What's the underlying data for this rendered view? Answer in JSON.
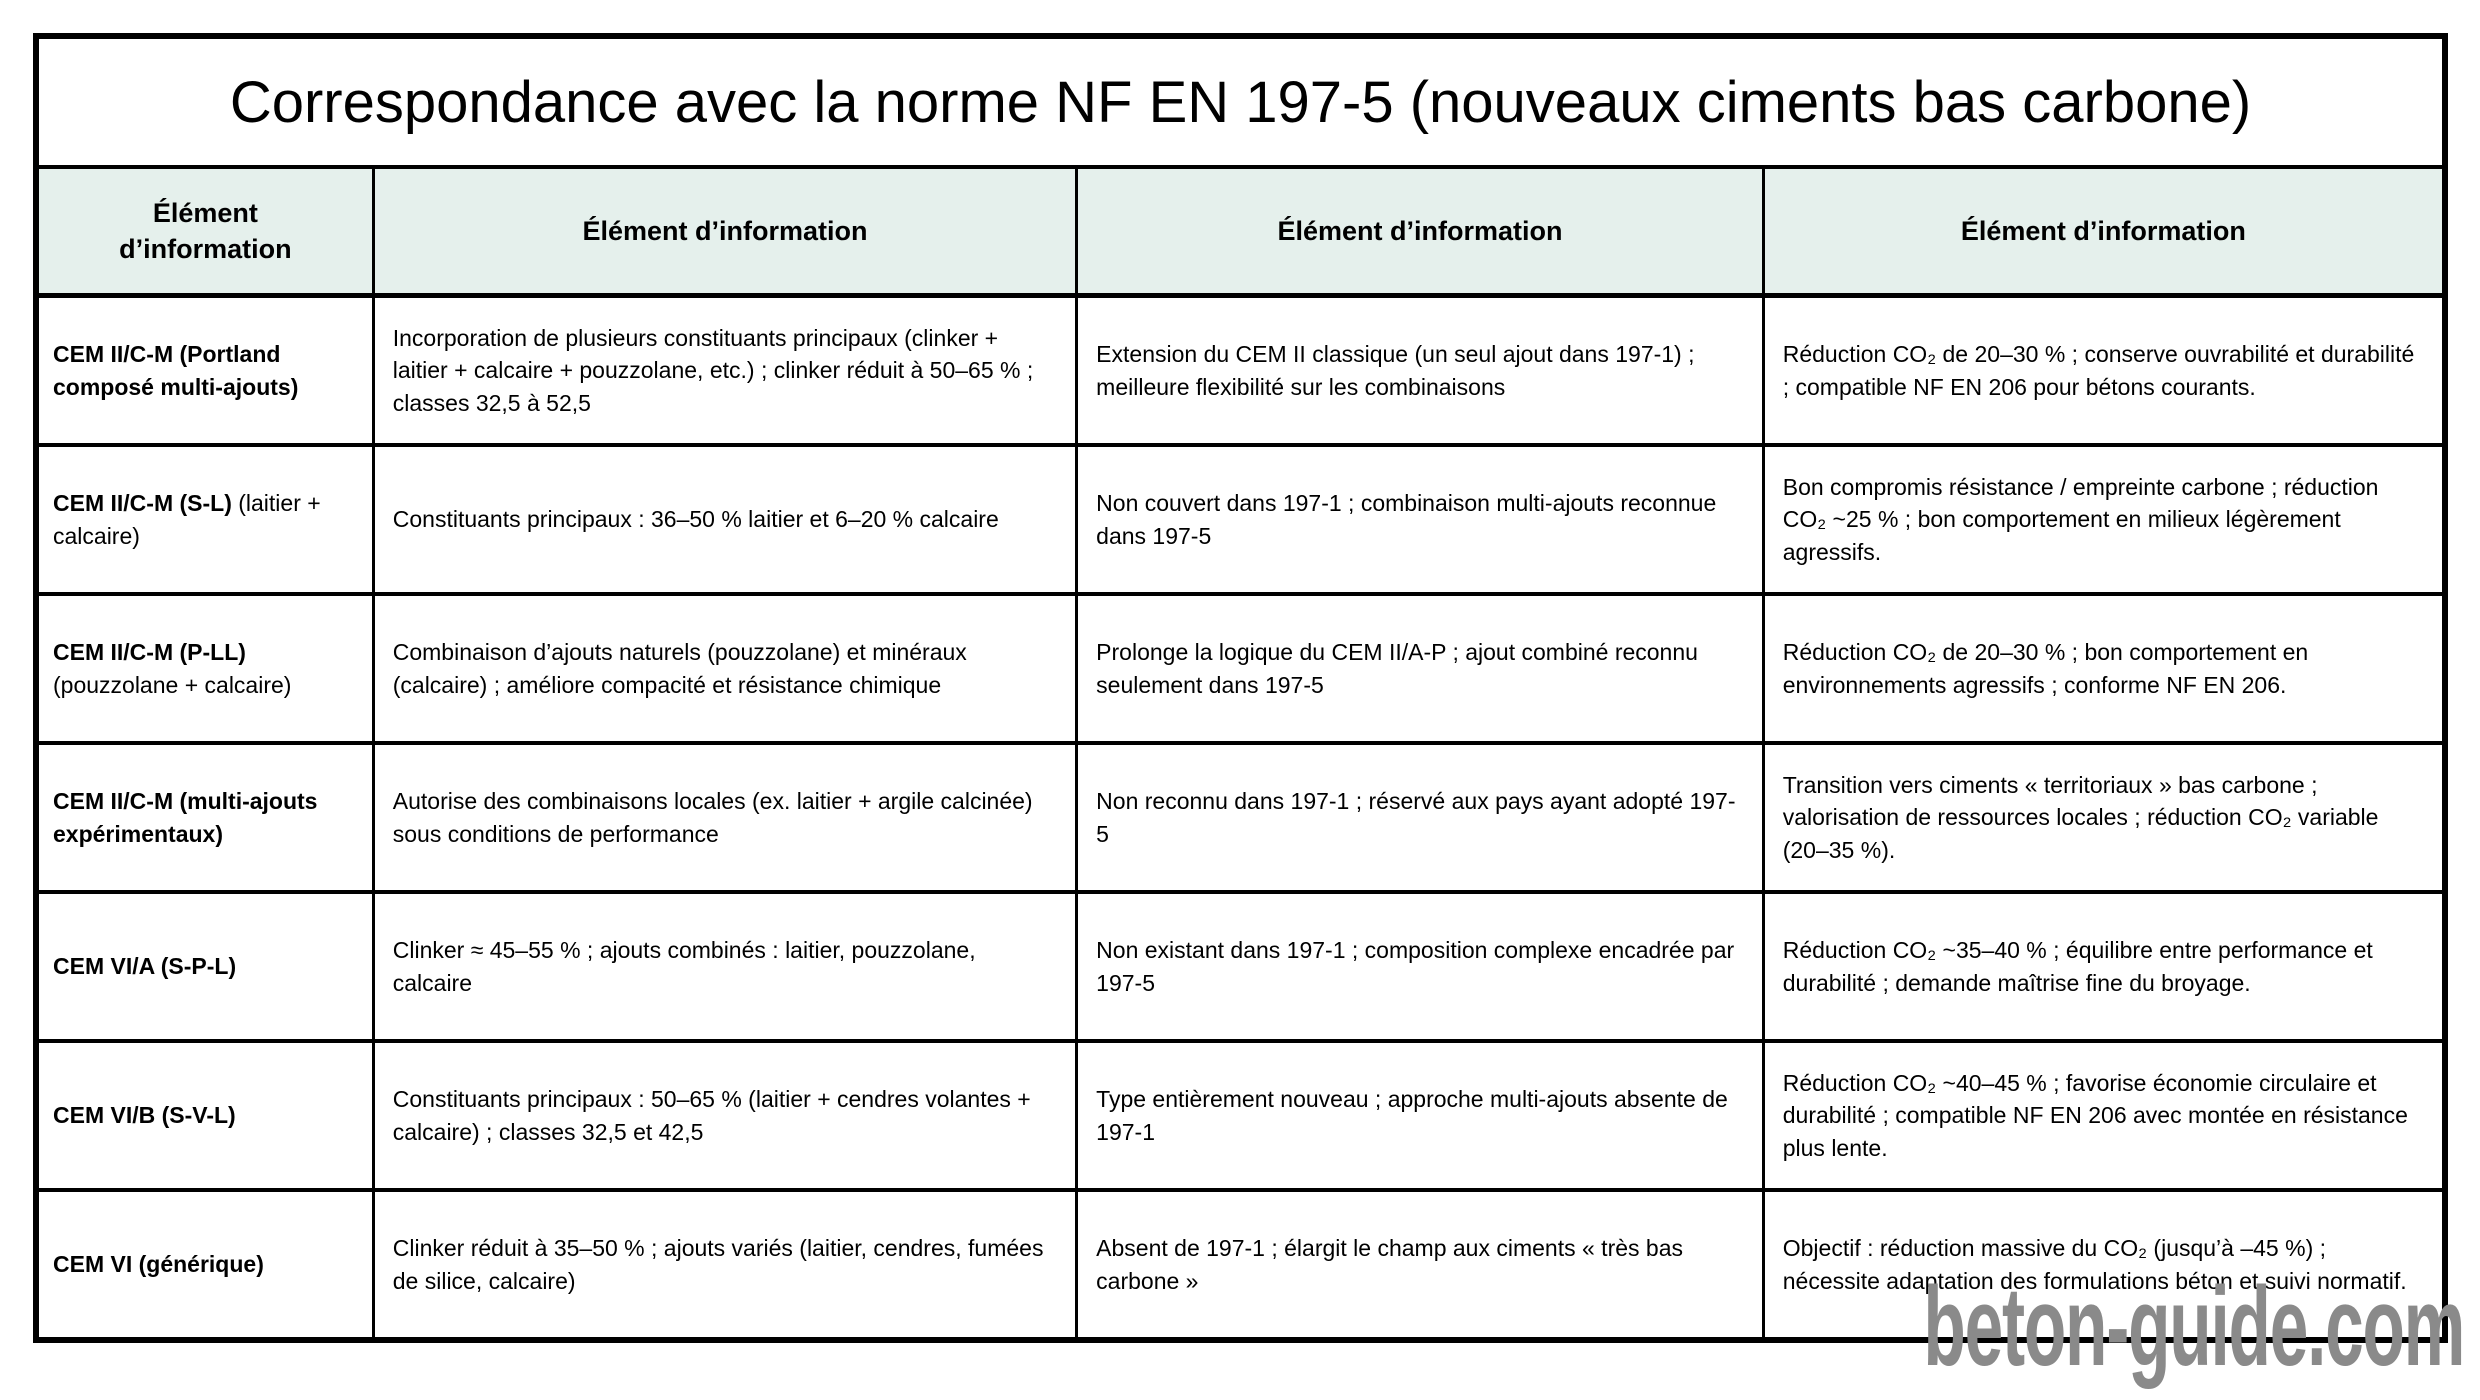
{
  "title": "Correspondance avec la norme NF EN 197-5 (nouveaux ciments bas carbone)",
  "watermark": "beton-guide.com",
  "colors": {
    "header_bg": "#e5f0ec",
    "border": "#000000",
    "watermark": "#8a8a8a",
    "text": "#000000",
    "background": "#ffffff"
  },
  "table": {
    "headers": [
      "Élément d’information",
      "Élément d’information",
      "Élément d’information",
      "Élément d’information"
    ],
    "rows": [
      {
        "name": "CEM II/C-M (Portland composé multi-ajouts)",
        "name_suffix": "",
        "composition": "Incorporation de plusieurs constituants principaux (clinker + laitier + calcaire + pouzzolane, etc.) ; clinker réduit à 50–65 % ; classes 32,5 à 52,5",
        "norme": "Extension du CEM II classique (un seul ajout dans 197-1) ; meilleure flexibilité sur les combinaisons",
        "impact": "Réduction CO₂ de 20–30 % ; conserve ouvrabilité et durabilité ; compatible NF EN 206 pour bétons courants."
      },
      {
        "name": "CEM II/C-M (S-L)",
        "name_suffix": " (laitier + calcaire)",
        "composition": "Constituants principaux : 36–50 % laitier et 6–20 % calcaire",
        "norme": "Non couvert dans 197-1 ; combinaison multi-ajouts reconnue dans 197-5",
        "impact": "Bon compromis résistance / empreinte carbone ; réduction CO₂ ~25 % ; bon comportement en milieux légèrement agressifs."
      },
      {
        "name": "CEM II/C-M (P-LL)",
        "name_suffix": " (pouzzolane + calcaire)",
        "composition": "Combinaison d’ajouts naturels (pouzzolane) et minéraux (calcaire) ; améliore compacité et résistance chimique",
        "norme": "Prolonge la logique du CEM II/A-P ; ajout combiné reconnu seulement dans 197-5",
        "impact": "Réduction CO₂ de 20–30 % ; bon comportement en environnements agressifs ; conforme NF EN 206."
      },
      {
        "name": "CEM II/C-M (multi-ajouts expérimentaux)",
        "name_suffix": "",
        "composition": "Autorise des combinaisons locales (ex. laitier + argile calcinée) sous conditions de performance",
        "norme": "Non reconnu dans 197-1 ; réservé aux pays ayant adopté 197-5",
        "impact": "Transition vers ciments « territoriaux » bas carbone ; valorisation de ressources locales ; réduction CO₂ variable (20–35 %)."
      },
      {
        "name": "CEM VI/A (S-P-L)",
        "name_suffix": "",
        "composition": "Clinker ≈ 45–55 % ; ajouts combinés : laitier, pouzzolane, calcaire",
        "norme": "Non existant dans 197-1 ; composition complexe encadrée par 197-5",
        "impact": "Réduction CO₂ ~35–40 % ; équilibre entre performance et durabilité ; demande maîtrise fine du broyage."
      },
      {
        "name": "CEM VI/B (S-V-L)",
        "name_suffix": "",
        "composition": "Constituants principaux : 50–65 % (laitier + cendres volantes + calcaire) ; classes 32,5 et 42,5",
        "norme": "Type entièrement nouveau ; approche multi-ajouts absente de 197-1",
        "impact": "Réduction CO₂ ~40–45 % ; favorise économie circulaire et durabilité ; compatible NF EN 206 avec montée en résistance plus lente."
      },
      {
        "name": "CEM VI (générique)",
        "name_suffix": "",
        "composition": "Clinker réduit à 35–50 % ; ajouts variés (laitier, cendres, fumées de silice, calcaire)",
        "norme": "Absent de 197-1 ; élargit le champ aux ciments « très bas carbone »",
        "impact": "Objectif : réduction massive du CO₂ (jusqu’à –45 %) ; nécessite adaptation des formulations béton et suivi normatif."
      }
    ]
  }
}
